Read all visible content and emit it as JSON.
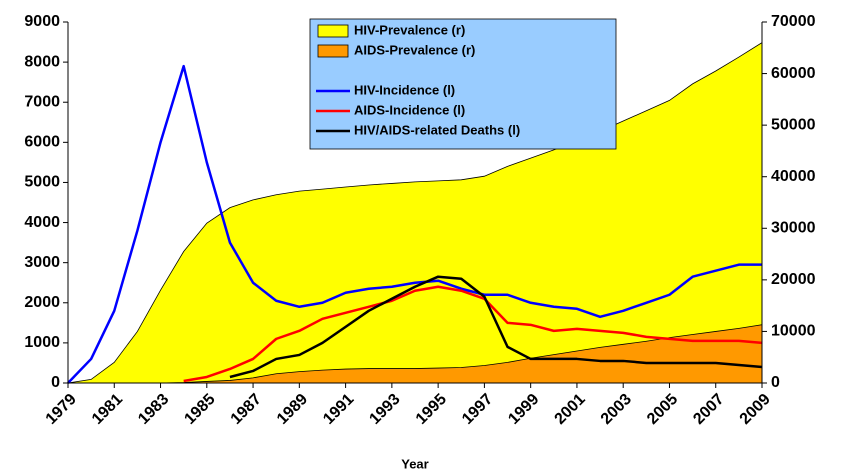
{
  "chart_data": {
    "type": "line",
    "x": [
      1979,
      1980,
      1981,
      1982,
      1983,
      1984,
      1985,
      1986,
      1987,
      1988,
      1989,
      1990,
      1991,
      1992,
      1993,
      1994,
      1995,
      1996,
      1997,
      1998,
      1999,
      2000,
      2001,
      2002,
      2003,
      2004,
      2005,
      2006,
      2007,
      2008,
      2009
    ],
    "xlim": [
      1979,
      2009
    ],
    "xticks": [
      1979,
      1981,
      1983,
      1985,
      1987,
      1989,
      1991,
      1993,
      1995,
      1997,
      1999,
      2001,
      2003,
      2005,
      2007,
      2009
    ],
    "x_label": "Year",
    "ylim": [
      0,
      9000
    ],
    "yticks": [
      0,
      1000,
      2000,
      3000,
      4000,
      5000,
      6000,
      7000,
      8000,
      9000
    ],
    "y2lim": [
      0,
      70000
    ],
    "y2ticks": [
      0,
      10000,
      20000,
      30000,
      40000,
      50000,
      60000,
      70000
    ],
    "series": [
      {
        "name": "HIV-Prevalence (r)",
        "color": "#ffff00",
        "style": "area",
        "axis": "y2",
        "values": [
          0,
          700,
          4000,
          10000,
          18000,
          25500,
          31000,
          34000,
          35500,
          36500,
          37200,
          37600,
          38000,
          38400,
          38700,
          39000,
          39200,
          39400,
          40100,
          42000,
          43600,
          45200,
          47000,
          48800,
          50800,
          52800,
          54800,
          58000,
          60500,
          63200,
          66000
        ]
      },
      {
        "name": "AIDS-Prevalence (r)",
        "color": "#ff9900",
        "style": "area",
        "axis": "y2",
        "values": [
          0,
          0,
          0,
          0,
          0,
          100,
          300,
          500,
          1000,
          1800,
          2200,
          2500,
          2700,
          2800,
          2800,
          2800,
          2900,
          3000,
          3400,
          4000,
          4800,
          5500,
          6200,
          6900,
          7500,
          8100,
          8800,
          9400,
          10000,
          10600,
          11300
        ]
      },
      {
        "name": "HIV-Incidence (l)",
        "color": "#0000ff",
        "style": "line",
        "values": [
          0,
          600,
          1800,
          3800,
          6000,
          7900,
          5500,
          3500,
          2500,
          2050,
          1900,
          2000,
          2250,
          2350,
          2400,
          2500,
          2550,
          2350,
          2200,
          2200,
          2000,
          1900,
          1850,
          1650,
          1800,
          2000,
          2200,
          2650,
          2800,
          2950,
          2950
        ]
      },
      {
        "name": "AIDS-Incidence (l)",
        "color": "#ff0000",
        "style": "line",
        "values": [
          null,
          null,
          null,
          null,
          null,
          50,
          150,
          350,
          600,
          1100,
          1300,
          1600,
          1750,
          1900,
          2050,
          2300,
          2400,
          2300,
          2100,
          1500,
          1450,
          1300,
          1350,
          1300,
          1250,
          1150,
          1100,
          1050,
          1050,
          1050,
          1000
        ]
      },
      {
        "name": "HIV/AIDS-related Deaths (l)",
        "color": "#000000",
        "style": "line",
        "values": [
          null,
          null,
          null,
          null,
          null,
          null,
          null,
          150,
          300,
          600,
          700,
          1000,
          1400,
          1800,
          2100,
          2400,
          2650,
          2600,
          2150,
          900,
          600,
          600,
          600,
          550,
          550,
          500,
          500,
          500,
          500,
          450,
          400
        ]
      }
    ]
  }
}
